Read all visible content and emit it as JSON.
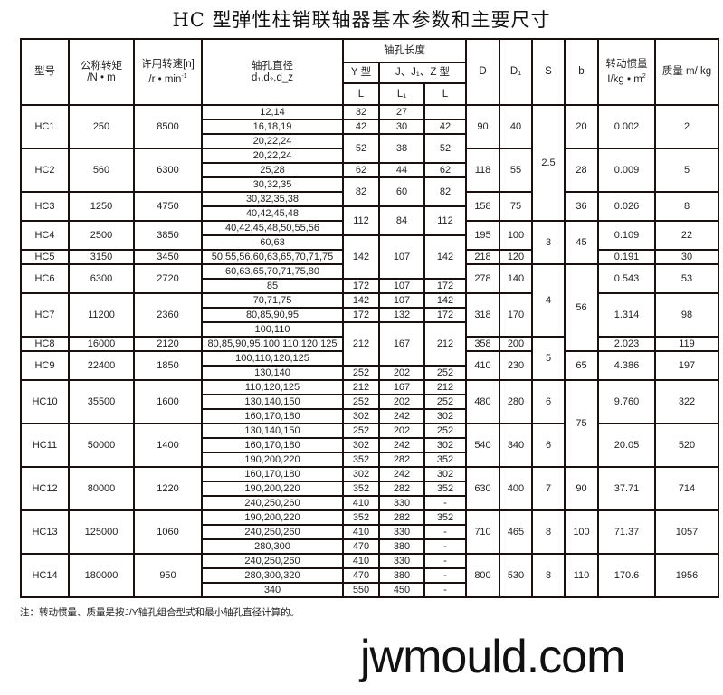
{
  "title": "HC 型弹性柱销联轴器基本参数和主要尺寸",
  "headers": {
    "model": "型号",
    "torque_1": "公称转矩",
    "torque_2": "/N • m",
    "speed_1": "许用转速[n]",
    "speed_2": "/r • min",
    "speed_sup": "-1",
    "bore_1": "轴孔直径",
    "bore_2": "d₁,d₂,d_z",
    "length": "轴孔长度",
    "y_type": "Y 型",
    "jz_type": "J、J₁、Z 型",
    "L": "L",
    "L1": "L₁",
    "L_z": "L",
    "D": "D",
    "D1": "D₁",
    "S": "S",
    "b": "b",
    "inertia_1": "转动惯量",
    "inertia_2": "I/kg • m",
    "inertia_sup": "2",
    "mass": "质量 m/ kg"
  },
  "models": [
    {
      "name": "HC1",
      "torque": "250",
      "speed": "8500",
      "D": "90",
      "D1": "40",
      "inertia": "0.002",
      "mass": "2"
    },
    {
      "name": "HC2",
      "torque": "560",
      "speed": "6300",
      "D": "118",
      "D1": "55",
      "inertia": "0.009",
      "mass": "5"
    },
    {
      "name": "HC3",
      "torque": "1250",
      "speed": "4750",
      "D": "158",
      "D1": "75",
      "inertia": "0.026",
      "mass": "8"
    },
    {
      "name": "HC4",
      "torque": "2500",
      "speed": "3850",
      "D": "195",
      "D1": "100",
      "inertia": "0.109",
      "mass": "22"
    },
    {
      "name": "HC5",
      "torque": "3150",
      "speed": "3450",
      "D": "218",
      "D1": "120",
      "inertia": "0.191",
      "mass": "30"
    },
    {
      "name": "HC6",
      "torque": "6300",
      "speed": "2720",
      "D": "278",
      "D1": "140",
      "inertia": "0.543",
      "mass": "53"
    },
    {
      "name": "HC7",
      "torque": "11200",
      "speed": "2360",
      "D": "318",
      "D1": "170",
      "inertia": "1.314",
      "mass": "98"
    },
    {
      "name": "HC8",
      "torque": "16000",
      "speed": "2120",
      "D": "358",
      "D1": "200",
      "inertia": "2.023",
      "mass": "119"
    },
    {
      "name": "HC9",
      "torque": "22400",
      "speed": "1850",
      "D": "410",
      "D1": "230",
      "inertia": "4.386",
      "mass": "197"
    },
    {
      "name": "HC10",
      "torque": "35500",
      "speed": "1600",
      "D": "480",
      "D1": "280",
      "inertia": "9.760",
      "mass": "322"
    },
    {
      "name": "HC11",
      "torque": "50000",
      "speed": "1400",
      "D": "540",
      "D1": "340",
      "inertia": "20.05",
      "mass": "520"
    },
    {
      "name": "HC12",
      "torque": "80000",
      "speed": "1220",
      "D": "630",
      "D1": "400",
      "inertia": "37.71",
      "mass": "714"
    },
    {
      "name": "HC13",
      "torque": "125000",
      "speed": "1060",
      "D": "710",
      "D1": "465",
      "inertia": "71.37",
      "mass": "1057"
    },
    {
      "name": "HC14",
      "torque": "180000",
      "speed": "950",
      "D": "800",
      "D1": "530",
      "inertia": "170.6",
      "mass": "1956"
    }
  ],
  "bores": [
    "12,14",
    "16,18,19",
    "20,22,24",
    "20,22,24",
    "25,28",
    "30,32,35",
    "30,32,35,38",
    "40,42,45,48",
    "40,42,45,48,50,55,56",
    "60,63",
    "50,55,56,60,63,65,70,71,75",
    "60,63,65,70,71,75,80",
    "85",
    "70,71,75",
    "80,85,90,95",
    "100,110",
    "80,85,90,95,100,110,120,125",
    "100,110,120,125",
    "130,140",
    "110,120,125",
    "130,140,150",
    "160,170,180",
    "130,140,150",
    "160,170,180",
    "190,200,220",
    "160,170,180",
    "190,200,220",
    "240,250,260",
    "190,200,220",
    "240,250,260",
    "280,300",
    "240,250,260",
    "280,300,320",
    "340"
  ],
  "lengths": [
    {
      "Y_L": "32",
      "L1": "27",
      "L": ""
    },
    {
      "Y_L": "42",
      "L1": "30",
      "L": "42"
    },
    {
      "Y_L": "52",
      "L1": "38",
      "L": "52"
    },
    {
      "Y_L": "62",
      "L1": "44",
      "L": "62"
    },
    {
      "Y_L": "82",
      "L1": "60",
      "L": "82"
    },
    {
      "Y_L": "112",
      "L1": "84",
      "L": "112"
    },
    {
      "Y_L": "142",
      "L1": "107",
      "L": "142"
    },
    {
      "Y_L": "172",
      "L1": "107",
      "L": "172"
    },
    {
      "Y_L": "142",
      "L1": "107",
      "L": "142"
    },
    {
      "Y_L": "172",
      "L1": "132",
      "L": "172"
    },
    {
      "Y_L": "212",
      "L1": "167",
      "L": "212"
    },
    {
      "Y_L": "252",
      "L1": "202",
      "L": "252"
    },
    {
      "Y_L": "212",
      "L1": "167",
      "L": "212"
    },
    {
      "Y_L": "252",
      "L1": "202",
      "L": "252"
    },
    {
      "Y_L": "302",
      "L1": "242",
      "L": "302"
    },
    {
      "Y_L": "252",
      "L1": "202",
      "L": "252"
    },
    {
      "Y_L": "302",
      "L1": "242",
      "L": "302"
    },
    {
      "Y_L": "352",
      "L1": "282",
      "L": "352"
    },
    {
      "Y_L": "302",
      "L1": "242",
      "L": "302"
    },
    {
      "Y_L": "352",
      "L1": "282",
      "L": "352"
    },
    {
      "Y_L": "410",
      "L1": "330",
      "L": "-"
    },
    {
      "Y_L": "352",
      "L1": "282",
      "L": "352"
    },
    {
      "Y_L": "410",
      "L1": "330",
      "L": "-"
    },
    {
      "Y_L": "470",
      "L1": "380",
      "L": "-"
    },
    {
      "Y_L": "410",
      "L1": "330",
      "L": "-"
    },
    {
      "Y_L": "470",
      "L1": "380",
      "L": "-"
    },
    {
      "Y_L": "550",
      "L1": "450",
      "L": "-"
    }
  ],
  "S": [
    "2.5",
    "3",
    "4",
    "5",
    "6",
    "6",
    "7",
    "8",
    "8"
  ],
  "b": [
    "20",
    "28",
    "36",
    "45",
    "56",
    "65",
    "75",
    "90",
    "100",
    "110"
  ],
  "note": "注：转动惯量、质量是按J/Y轴孔组合型式和最小轴孔直径计算的。",
  "watermark": "jwmould.com"
}
